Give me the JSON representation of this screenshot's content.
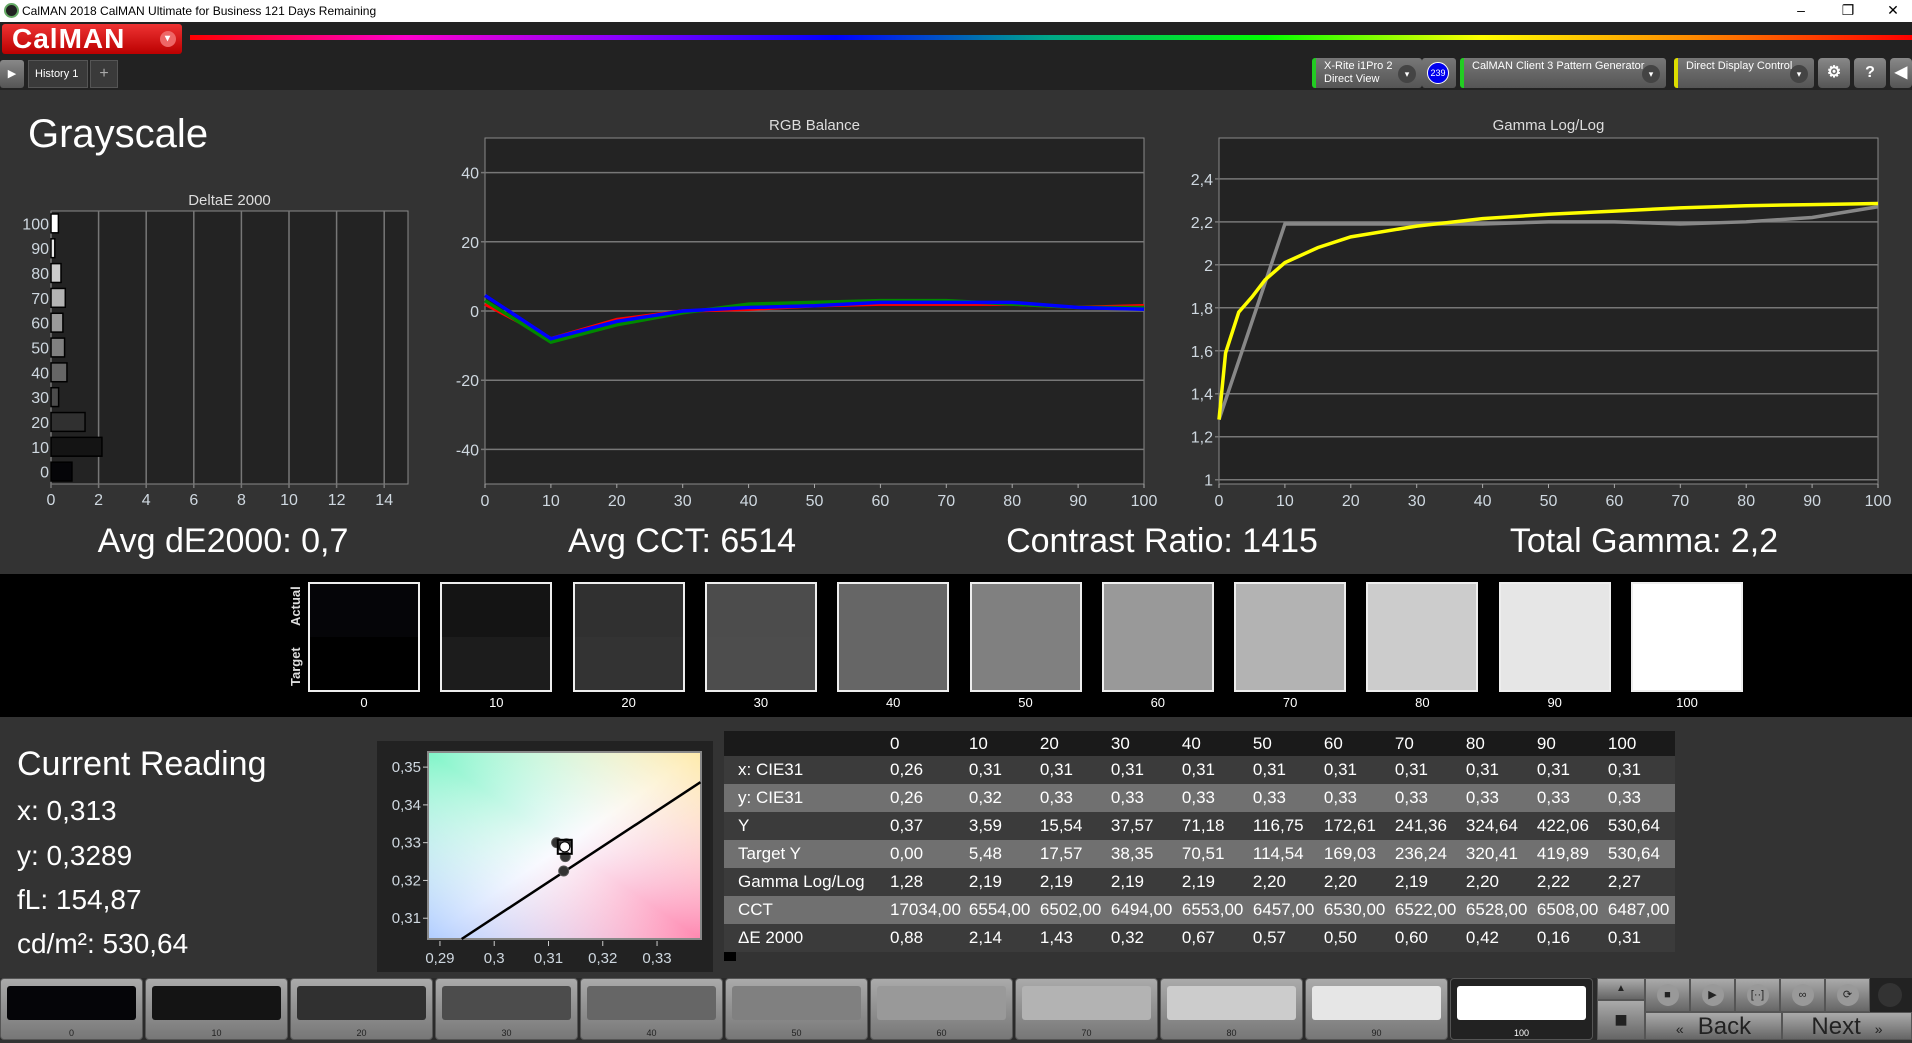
{
  "window": {
    "title": "CalMAN 2018 CalMAN Ultimate for Business 121 Days Remaining",
    "minimize": "–",
    "restore": "❐",
    "close": "✕"
  },
  "logo": {
    "text": "CalMAN",
    "dropdown": "▾"
  },
  "tabs": {
    "play": "▶",
    "history": "History 1",
    "add": "+"
  },
  "toolbar": {
    "meter_line1": "X-Rite i1Pro 2",
    "meter_line2": "Direct View",
    "meter_badge": "239",
    "pattern_gen": "CalMAN Client 3 Pattern Generator",
    "display_control": "Direct Display Control",
    "dropdown": "▾",
    "settings": "⚙",
    "help": "?",
    "collapse": "◀",
    "colors": {
      "meter": "#22cc22",
      "pattern": "#22cc22",
      "display": "#dddd00",
      "badge": "#0000ee"
    }
  },
  "page_title": "Grayscale",
  "stats": {
    "avg_de": "Avg dE2000: 0,7",
    "avg_cct": "Avg CCT: 6514",
    "contrast": "Contrast Ratio: 1415",
    "gamma": "Total Gamma: 2,2"
  },
  "chart_data": [
    {
      "type": "bar",
      "orientation": "horizontal",
      "title": "DeltaE 2000",
      "categories": [
        "0",
        "10",
        "20",
        "30",
        "40",
        "50",
        "60",
        "70",
        "80",
        "90",
        "100"
      ],
      "values": [
        0.88,
        2.14,
        1.43,
        0.32,
        0.67,
        0.57,
        0.5,
        0.6,
        0.42,
        0.16,
        0.31
      ],
      "xlim": [
        0,
        15
      ],
      "xticks": [
        "0",
        "2",
        "4",
        "6",
        "8",
        "10",
        "12",
        "14"
      ],
      "grid": true
    },
    {
      "type": "line",
      "title": "RGB Balance",
      "x": [
        0,
        10,
        20,
        30,
        40,
        50,
        60,
        70,
        80,
        90,
        100
      ],
      "ylim": [
        -50,
        50
      ],
      "yticks": [
        "40",
        "20",
        "0",
        "-20",
        "-40"
      ],
      "xticks": [
        "0",
        "10",
        "20",
        "30",
        "40",
        "50",
        "60",
        "70",
        "80",
        "90",
        "100"
      ],
      "grid": true,
      "series": [
        {
          "color": "#ff0000",
          "values": [
            2,
            -8,
            -2.5,
            0,
            0.5,
            1.5,
            2,
            2,
            2,
            1,
            1.5
          ]
        },
        {
          "color": "#008800",
          "values": [
            3,
            -9,
            -4,
            -0.5,
            2,
            2.5,
            3,
            3,
            2,
            1,
            1
          ]
        },
        {
          "color": "#0000ff",
          "values": [
            4.5,
            -8,
            -3,
            0,
            1,
            1.5,
            2.5,
            2.5,
            2.5,
            1,
            0.5
          ]
        }
      ]
    },
    {
      "type": "line",
      "title": "Gamma Log/Log",
      "ylim": [
        0.98,
        2.59
      ],
      "xlim": [
        0,
        100
      ],
      "yticks": [
        "2,4",
        "2,2",
        "2",
        "1,8",
        "1,6",
        "1,4",
        "1,2",
        "1"
      ],
      "xticks": [
        "0",
        "10",
        "20",
        "30",
        "40",
        "50",
        "60",
        "70",
        "80",
        "90",
        "100"
      ],
      "grid": true,
      "series": [
        {
          "color": "#888888",
          "x": [
            0,
            10,
            20,
            30,
            40,
            50,
            60,
            70,
            80,
            90,
            100
          ],
          "values": [
            1.28,
            2.19,
            2.19,
            2.19,
            2.19,
            2.2,
            2.2,
            2.19,
            2.2,
            2.22,
            2.27
          ]
        },
        {
          "color": "#ffff00",
          "x": [
            0,
            1,
            3,
            5,
            7,
            10,
            15,
            20,
            30,
            40,
            50,
            60,
            70,
            80,
            90,
            100
          ],
          "values": [
            1.28,
            1.59,
            1.78,
            1.85,
            1.93,
            2.01,
            2.08,
            2.13,
            2.18,
            2.215,
            2.235,
            2.25,
            2.265,
            2.275,
            2.28,
            2.285
          ]
        }
      ]
    },
    {
      "type": "scatter",
      "xlim": [
        0.2878,
        0.3381
      ],
      "ylim": [
        0.3045,
        0.354
      ],
      "xticks": [
        "0,29",
        "0,3",
        "0,31",
        "0,32",
        "0,33"
      ],
      "yticks": [
        "0,35",
        "0,34",
        "0,33",
        "0,32",
        "0,31"
      ],
      "locus": [
        [
          0.294,
          0.3045
        ],
        [
          0.338,
          0.346
        ]
      ],
      "points": [
        [
          0.3115,
          0.33
        ],
        [
          0.3125,
          0.3292
        ],
        [
          0.3133,
          0.3297
        ],
        [
          0.3131,
          0.3263
        ],
        [
          0.3128,
          0.3225
        ]
      ],
      "current": [
        0.313,
        0.3289
      ]
    }
  ],
  "swatches": {
    "actual_label": "Actual",
    "target_label": "Target",
    "levels": [
      "0",
      "10",
      "20",
      "30",
      "40",
      "50",
      "60",
      "70",
      "80",
      "90",
      "100"
    ],
    "actual": [
      "#050508",
      "#141414",
      "#303030",
      "#4c4c4c",
      "#666666",
      "#808080",
      "#999999",
      "#b3b3b3",
      "#cccccc",
      "#e6e6e6",
      "#ffffff"
    ],
    "target": [
      "#000000",
      "#1c1c1c",
      "#333333",
      "#4d4d4d",
      "#666666",
      "#808080",
      "#999999",
      "#b3b3b3",
      "#cccccc",
      "#e6e6e6",
      "#ffffff"
    ]
  },
  "current": {
    "title": "Current Reading",
    "x": "x: 0,313",
    "y": "y: 0,3289",
    "fl": "fL: 154,87",
    "cdm2": "cd/m²: 530,64"
  },
  "table": {
    "headers": [
      "0",
      "10",
      "20",
      "30",
      "40",
      "50",
      "60",
      "70",
      "80",
      "90",
      "100"
    ],
    "rows": [
      {
        "label": "x: CIE31",
        "values": [
          "0,26",
          "0,31",
          "0,31",
          "0,31",
          "0,31",
          "0,31",
          "0,31",
          "0,31",
          "0,31",
          "0,31",
          "0,31"
        ]
      },
      {
        "label": "y: CIE31",
        "values": [
          "0,26",
          "0,32",
          "0,33",
          "0,33",
          "0,33",
          "0,33",
          "0,33",
          "0,33",
          "0,33",
          "0,33",
          "0,33"
        ]
      },
      {
        "label": "Y",
        "values": [
          "0,37",
          "3,59",
          "15,54",
          "37,57",
          "71,18",
          "116,75",
          "172,61",
          "241,36",
          "324,64",
          "422,06",
          "530,64"
        ]
      },
      {
        "label": "Target Y",
        "values": [
          "0,00",
          "5,48",
          "17,57",
          "38,35",
          "70,51",
          "114,54",
          "169,03",
          "236,24",
          "320,41",
          "419,89",
          "530,64"
        ]
      },
      {
        "label": "Gamma Log/Log",
        "values": [
          "1,28",
          "2,19",
          "2,19",
          "2,19",
          "2,19",
          "2,20",
          "2,20",
          "2,19",
          "2,20",
          "2,22",
          "2,27"
        ]
      },
      {
        "label": "CCT",
        "values": [
          "17034,00",
          "6554,00",
          "6502,00",
          "6494,00",
          "6553,00",
          "6457,00",
          "6530,00",
          "6522,00",
          "6528,00",
          "6508,00",
          "6487,00"
        ]
      },
      {
        "label": "ΔE 2000",
        "values": [
          "0,88",
          "2,14",
          "1,43",
          "0,32",
          "0,67",
          "0,57",
          "0,50",
          "0,60",
          "0,42",
          "0,16",
          "0,31"
        ]
      }
    ]
  },
  "patches": {
    "labels": [
      "0",
      "10",
      "20",
      "30",
      "40",
      "50",
      "60",
      "70",
      "80",
      "90",
      "100"
    ],
    "selected": "100"
  },
  "controls": {
    "up": "▲",
    "stop_big": "■",
    "stop": "■",
    "play": "▶",
    "read_series": "[··]",
    "continuous": "∞",
    "refresh": "⟳",
    "back": "Back",
    "next": "Next",
    "back_icon": "«",
    "next_icon": "»"
  }
}
